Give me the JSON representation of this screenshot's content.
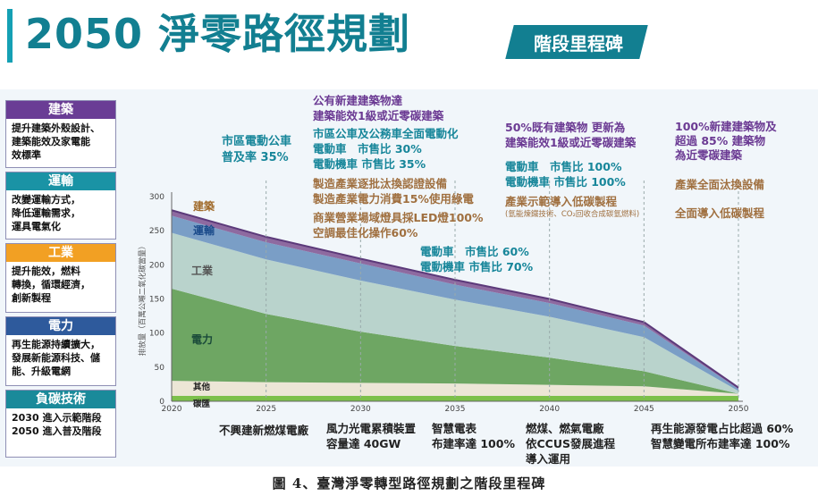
{
  "header": {
    "title": "2050 淨零路徑規劃",
    "badge": "階段里程碑",
    "accent_color": "#127f91"
  },
  "sidebar": [
    {
      "name": "建築",
      "color": "#6a3d95",
      "lines": [
        "提升建築外殼設計、",
        "建築能效及家電能",
        "效標準"
      ]
    },
    {
      "name": "運輸",
      "color": "#1a93a5",
      "lines": [
        "改變運輸方式，",
        "降低運輸需求，",
        "運具電氣化"
      ]
    },
    {
      "name": "工業",
      "color": "#f2a023",
      "lines": [
        "提升能效，燃料",
        "轉換，循環經濟，",
        "創新製程"
      ]
    },
    {
      "name": "電力",
      "color": "#2e5a9c",
      "lines": [
        "再生能源持續擴大，",
        "發展新能源科技、儲",
        "能、升級電網"
      ]
    },
    {
      "name": "負碳技術",
      "color": "#1a8a9a",
      "lines": [
        "2030 進入示範階段",
        "2050 進入普及階段"
      ]
    }
  ],
  "chart_data": {
    "type": "area",
    "x": [
      2020,
      2025,
      2030,
      2035,
      2040,
      2045,
      2050
    ],
    "xticks": [
      "2020",
      "2025",
      "2030",
      "2035",
      "2040",
      "2045",
      "2050"
    ],
    "ylim": [
      0,
      300
    ],
    "yticks": [
      "0",
      "50",
      "100",
      "150",
      "200",
      "250",
      "300"
    ],
    "ylabel": "排放量（百萬公噸二氧化碳當量）",
    "series": [
      {
        "name": "碳匯",
        "color": "#7cc04a",
        "values": [
          8,
          8,
          8,
          8,
          8,
          8,
          8
        ]
      },
      {
        "name": "其他",
        "color": "#ece6d6",
        "values": [
          22,
          20,
          19,
          18,
          16,
          14,
          3
        ]
      },
      {
        "name": "電力",
        "color": "#6ea663",
        "values": [
          135,
          100,
          75,
          55,
          40,
          22,
          0
        ]
      },
      {
        "name": "工業",
        "color": "#b9d3cc",
        "values": [
          82,
          80,
          75,
          68,
          60,
          50,
          4
        ]
      },
      {
        "name": "運輸",
        "color": "#7a9ec6",
        "values": [
          25,
          25,
          25,
          22,
          20,
          17,
          3
        ]
      },
      {
        "name": "建築",
        "color": "#8e6aa0",
        "values": [
          8,
          8,
          7,
          7,
          6,
          5,
          2
        ]
      }
    ],
    "series_labels": [
      "建築",
      "運輸",
      "工業",
      "電力",
      "其他",
      "碳匯"
    ]
  },
  "milestones": {
    "top": {
      "m1": [
        "市區電動公車",
        "普及率 35%"
      ],
      "m2a": [
        "公有新建建築物達",
        "建築能效1級或近零碳建築"
      ],
      "m2b": [
        "市區公車及公務車全面電動化",
        "電動車　市售比 30%",
        "電動機車 市售比 35%"
      ],
      "m2c": [
        "製造產業逐批汰換認證設備",
        "製造產業電力消費15%使用綠電"
      ],
      "m2d": [
        "商業營業場域燈具採LED燈100%",
        "空調最佳化操作60%"
      ],
      "m3": [
        "電動車　市售比 60%",
        "電動機車 市售比 70%"
      ],
      "m4a": [
        "50%既有建築物 更新為",
        "建築能效1級或近零碳建築"
      ],
      "m4b": [
        "電動車　市售比 100%",
        "電動機車 市售比 100%"
      ],
      "m4c": [
        "產業示範導入低碳製程",
        "(氫能煉鐵技術、CO₂回收合成碳氫燃料)"
      ],
      "m5a": [
        "100%新建建築物及",
        "超過 85% 建築物",
        "為近零碳建築"
      ],
      "m5b": [
        "產業全面汰換設備"
      ],
      "m5c": [
        "全面導入低碳製程"
      ]
    },
    "bottom": {
      "b1": [
        "不興建新燃煤電廠"
      ],
      "b2": [
        "風力光電累積裝置",
        "容量達 40GW"
      ],
      "b3": [
        "智慧電表",
        "布建率達 100%"
      ],
      "b4": [
        "燃煤、燃氣電廠",
        "依CCUS發展進程",
        "導入運用"
      ],
      "b5": [
        "再生能源發電占比超過 60%",
        "智慧變電所布建率達 100%"
      ]
    }
  },
  "caption": "圖 4、臺灣淨零轉型路徑規劃之階段里程碑"
}
